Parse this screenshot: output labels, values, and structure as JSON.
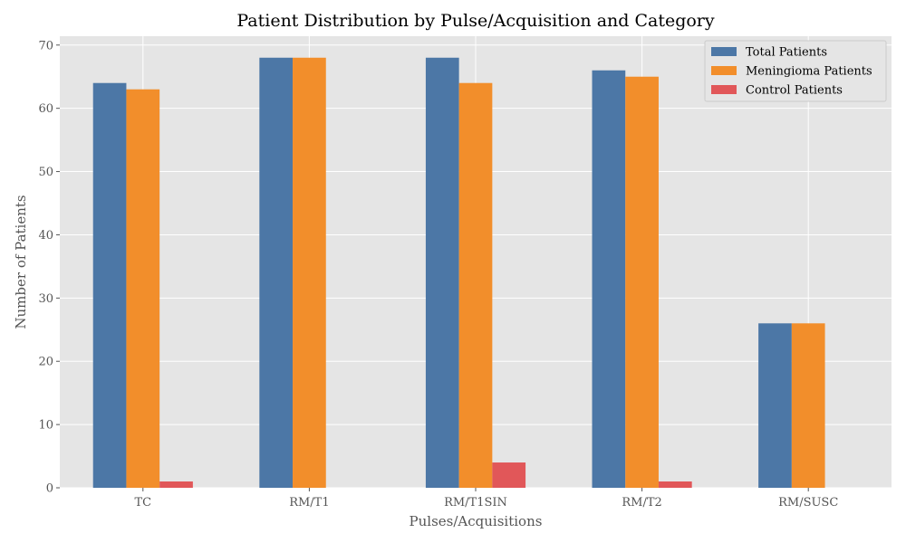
{
  "chart_data": {
    "type": "bar",
    "title": "Patient Distribution by Pulse/Acquisition and Category",
    "xlabel": "Pulses/Acquisitions",
    "ylabel": "Number of Patients",
    "categories": [
      "TC",
      "RM/T1",
      "RM/T1SIN",
      "RM/T2",
      "RM/SUSC"
    ],
    "series": [
      {
        "name": "Total Patients",
        "color": "#4c77a6",
        "values": [
          64,
          68,
          68,
          66,
          26
        ]
      },
      {
        "name": "Meningioma Patients",
        "color": "#f28e2b",
        "values": [
          63,
          68,
          64,
          65,
          26
        ]
      },
      {
        "name": "Control Patients",
        "color": "#e15759",
        "values": [
          1,
          0,
          4,
          1,
          0
        ]
      }
    ],
    "ylim": [
      0,
      71.4
    ],
    "yticks": [
      0,
      10,
      20,
      30,
      40,
      50,
      60,
      70
    ],
    "grid": true,
    "legend_position": "top-right",
    "background_color": "#e5e5e5",
    "grid_color": "#ffffff"
  }
}
